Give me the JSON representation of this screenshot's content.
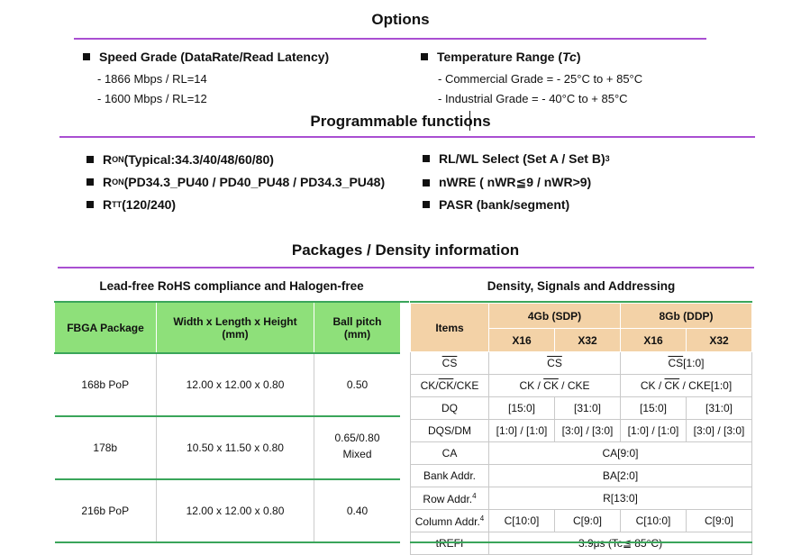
{
  "options": {
    "heading": "Options",
    "speed": {
      "title": "Speed Grade (DataRate/Read Latency)",
      "items": [
        "- 1866 Mbps / RL=14",
        "- 1600 Mbps / RL=12"
      ]
    },
    "temperature": {
      "title_prefix": "Temperature Range (",
      "title_italic": "Tc",
      "title_suffix": ")",
      "items": [
        "- Commercial Grade = - 25°C  to + 85°C",
        "- Industrial Grade = - 40°C  to + 85°C"
      ]
    }
  },
  "programmable": {
    "heading": "Programmable functions",
    "left": [
      {
        "r": "R",
        "sub": "ON",
        "text": " (Typical:34.3/40/48/60/80)"
      },
      {
        "r": "R",
        "sub": "ON",
        "text": " (PD34.3_PU40 / PD40_PU48 / PD34.3_PU48)"
      },
      {
        "r": "R",
        "sub": "TT",
        "text": " (120/240)"
      }
    ],
    "right": [
      {
        "text": "RL/WL Select (Set A / Set B)",
        "sup": "3"
      },
      {
        "text": "nWRE ( nWR≦9 / nWR>9)",
        "sup": ""
      },
      {
        "text": "PASR (bank/segment)",
        "sup": ""
      }
    ]
  },
  "packages": {
    "heading": "Packages / Density information",
    "left_caption": "Lead-free RoHS compliance and Halogen-free",
    "left_headers": {
      "fbga": "FBGA Package",
      "dims_line1": "Width x Length x Height",
      "dims_line2": "(mm)",
      "pitch_line1": "Ball pitch",
      "pitch_line2": "(mm)"
    },
    "left_rows": [
      {
        "pkg": "168b PoP",
        "dims": "12.00 x 12.00 x 0.80",
        "pitch": "0.50",
        "pitch2": ""
      },
      {
        "pkg": "178b",
        "dims": "10.50 x 11.50 x 0.80",
        "pitch": "0.65/0.80",
        "pitch2": "Mixed"
      },
      {
        "pkg": "216b PoP",
        "dims": "12.00 x 12.00 x 0.80",
        "pitch": "0.40",
        "pitch2": ""
      }
    ],
    "right_caption": "Density, Signals and Addressing",
    "right_headers": {
      "items": "Items",
      "g4": "4Gb (SDP)",
      "g8": "8Gb (DDP)",
      "x16": "X16",
      "x32": "X32"
    },
    "rows": {
      "cs_item": "CS",
      "cs_4": "CS",
      "cs_8_pre": "CS",
      "cs_8_post": "[1:0]",
      "ck_item_a": "CK/",
      "ck_item_b": "CK",
      "ck_item_c": "/CKE",
      "ck_4_a": "CK / ",
      "ck_4_b": "CK",
      "ck_4_c": " / CKE",
      "ck_8_a": "CK / ",
      "ck_8_b": "CK",
      "ck_8_c": " / CKE[1:0]",
      "dq_item": "DQ",
      "dq": [
        "[15:0]",
        "[31:0]",
        "[15:0]",
        "[31:0]"
      ],
      "dqs_item": "DQS/DM",
      "dqs": [
        "[1:0] / [1:0]",
        "[3:0] / [3:0]",
        "[1:0] / [1:0]",
        "[3:0] / [3:0]"
      ],
      "ca_item": "CA",
      "ca": "CA[9:0]",
      "bank_item": "Bank Addr.",
      "bank": "BA[2:0]",
      "row_item": "Row Addr.",
      "row_sup": "4",
      "row": "R[13:0]",
      "col_item": "Column Addr.",
      "col_sup": "4",
      "col": [
        "C[10:0]",
        "C[9:0]",
        "C[10:0]",
        "C[9:0]"
      ],
      "trefi_item": "tREFI",
      "trefi": "3.9μs (Tc≦ 85°C)"
    }
  }
}
